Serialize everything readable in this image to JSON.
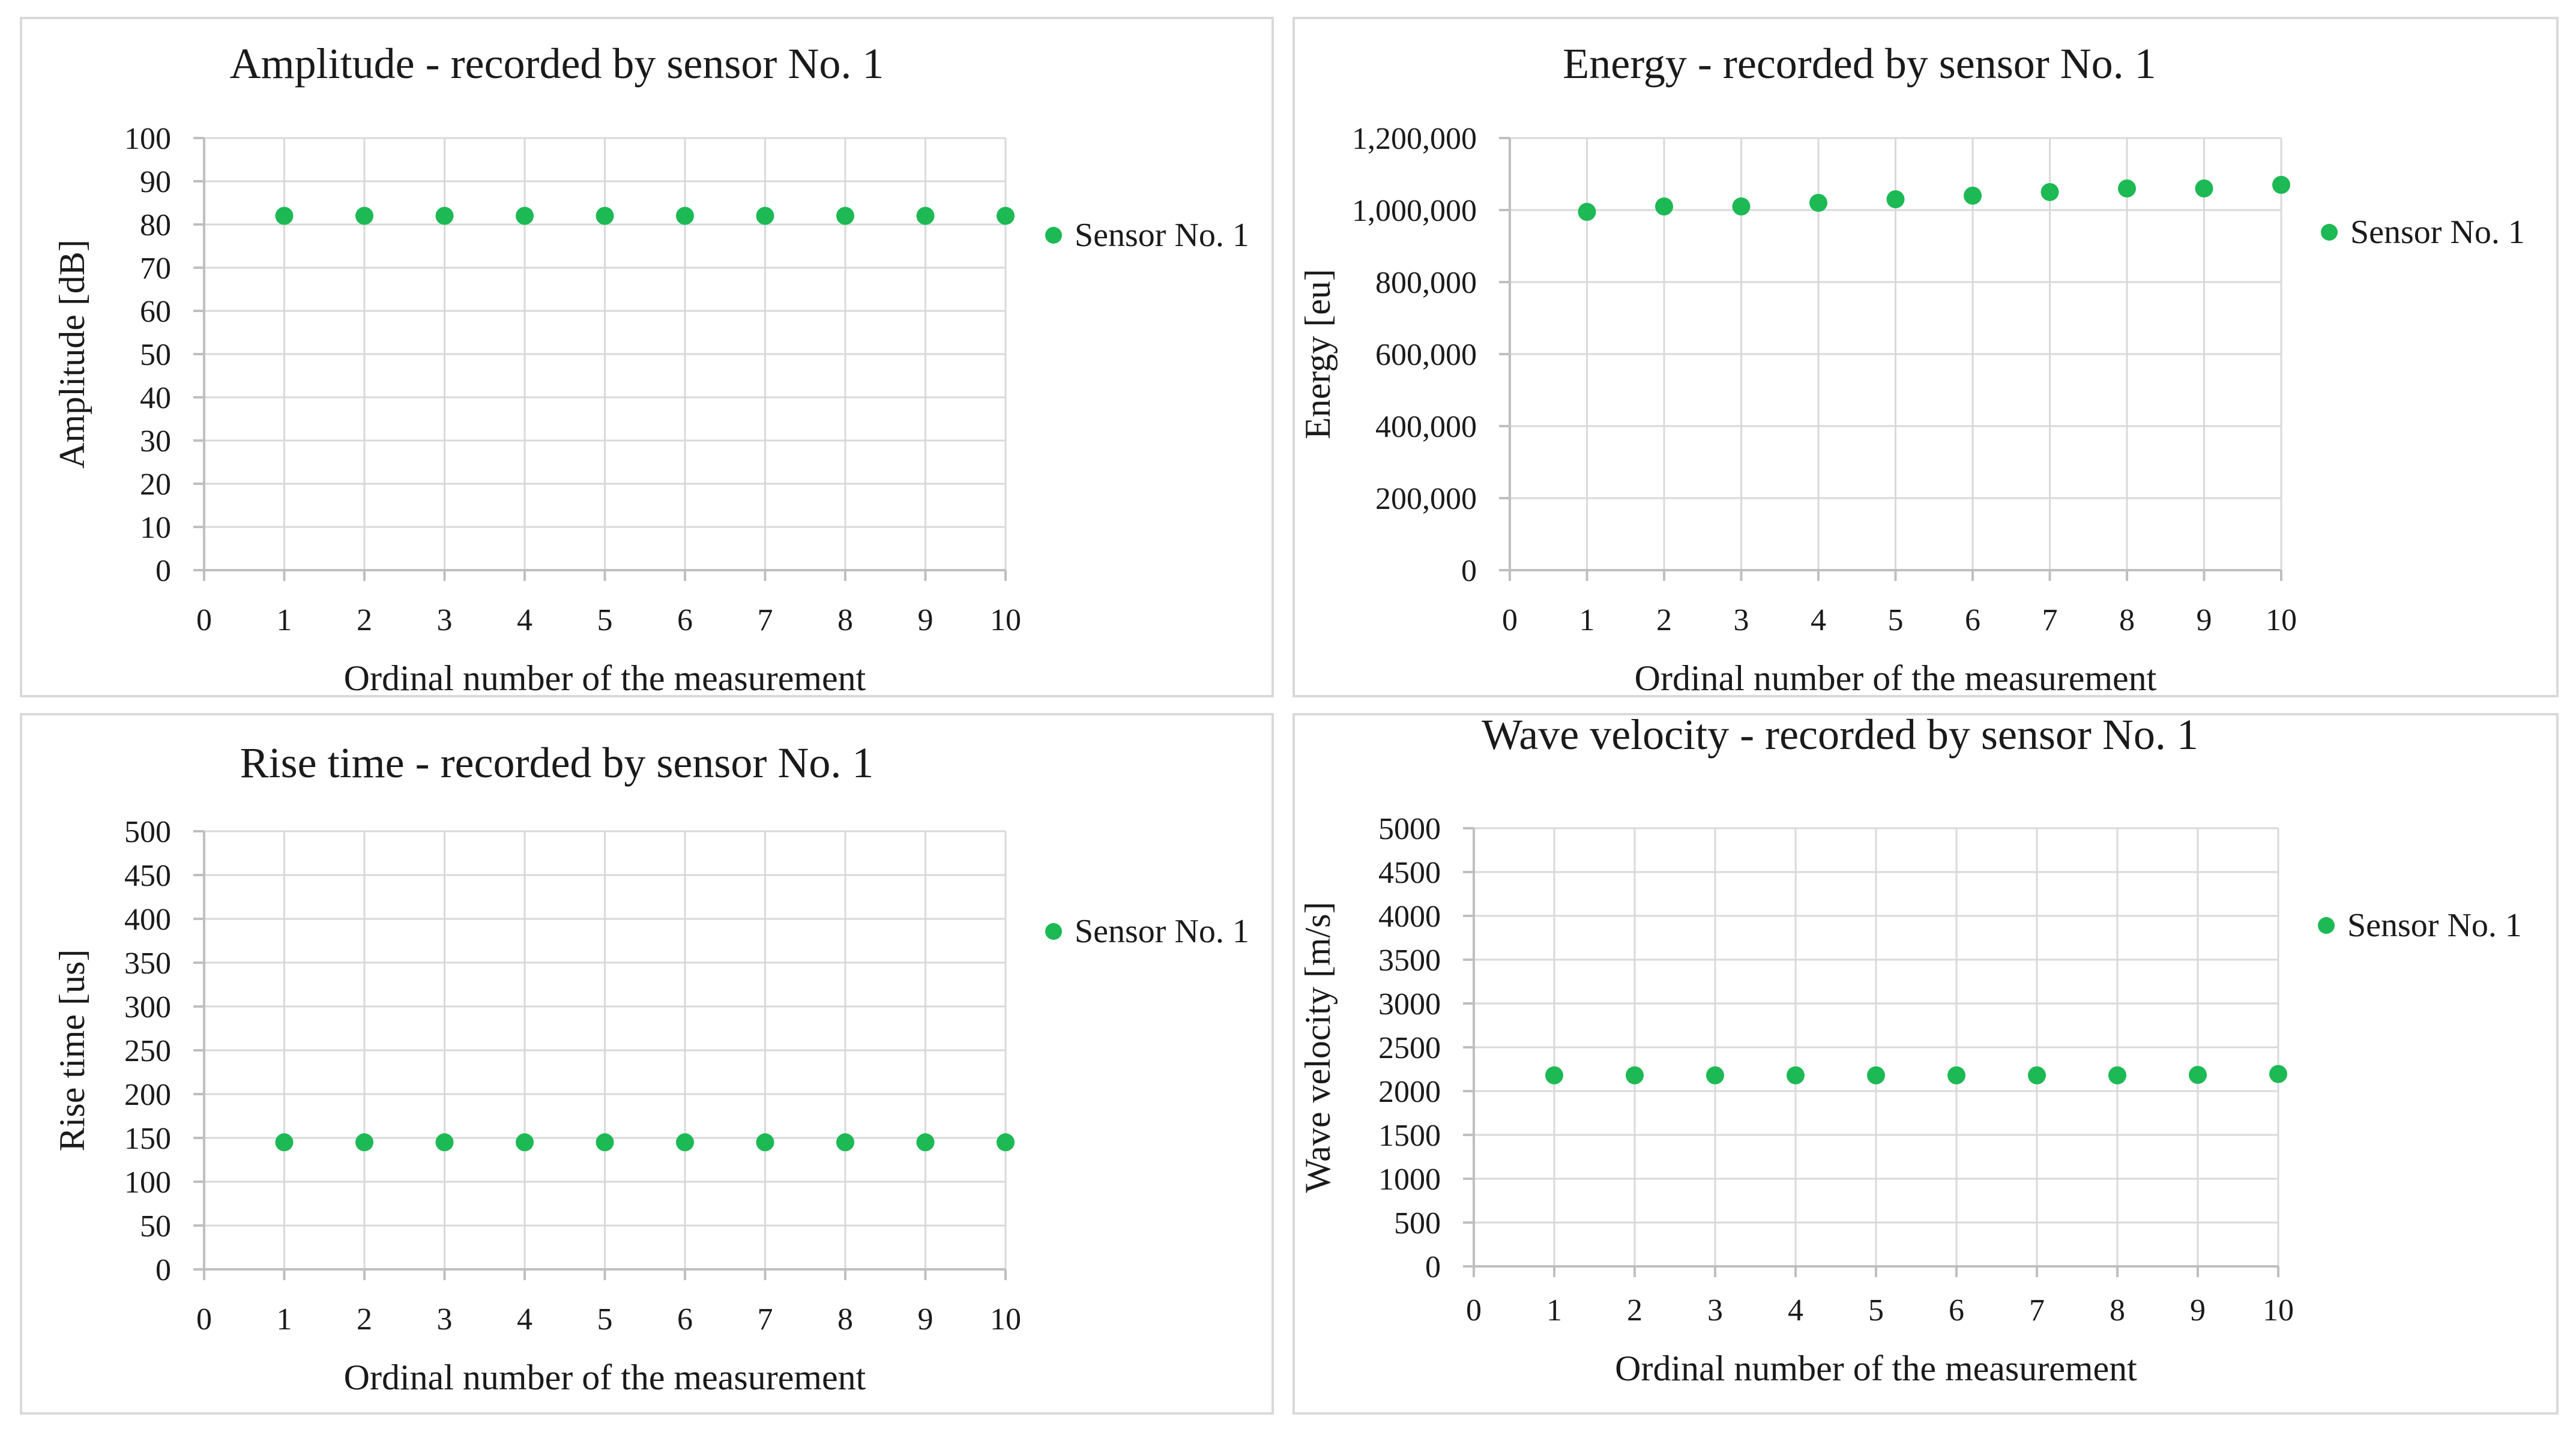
{
  "legend_label": "Sensor No. 1",
  "colors": {
    "marker": "#1db954",
    "grid": "#d9d9d9",
    "border": "#d9d9d9",
    "text": "#1a1a1a"
  },
  "chart_data": [
    {
      "type": "scatter",
      "title": "Amplitude - recorded by sensor No. 1",
      "xlabel": "Ordinal number of the measurement",
      "ylabel": "Amplitude [dB]",
      "xlim": [
        0,
        10
      ],
      "xticks": [
        "0",
        "1",
        "2",
        "3",
        "4",
        "5",
        "6",
        "7",
        "8",
        "9",
        "10"
      ],
      "ylim": [
        0,
        100
      ],
      "yticks": [
        "0",
        "10",
        "20",
        "30",
        "40",
        "50",
        "60",
        "70",
        "80",
        "90",
        "100"
      ],
      "series": [
        {
          "name": "Sensor No. 1",
          "x": [
            1,
            2,
            3,
            4,
            5,
            6,
            7,
            8,
            9,
            10
          ],
          "y": [
            82,
            82,
            82,
            82,
            82,
            82,
            82,
            82,
            82,
            82
          ]
        }
      ]
    },
    {
      "type": "scatter",
      "title": "Energy - recorded by sensor No. 1",
      "xlabel": "Ordinal number of the measurement",
      "ylabel": "Energy [eu]",
      "xlim": [
        0,
        10
      ],
      "xticks": [
        "0",
        "1",
        "2",
        "3",
        "4",
        "5",
        "6",
        "7",
        "8",
        "9",
        "10"
      ],
      "ylim": [
        0,
        1200000
      ],
      "yticks": [
        "0",
        "200,000",
        "400,000",
        "600,000",
        "800,000",
        "1,000,000",
        "1,200,000"
      ],
      "series": [
        {
          "name": "Sensor No. 1",
          "x": [
            1,
            2,
            3,
            4,
            5,
            6,
            7,
            8,
            9,
            10
          ],
          "y": [
            995000,
            1010000,
            1010000,
            1020000,
            1030000,
            1040000,
            1050000,
            1060000,
            1060000,
            1070000
          ]
        }
      ]
    },
    {
      "type": "scatter",
      "title": "Rise time - recorded by sensor No. 1",
      "xlabel": "Ordinal number of the measurement",
      "ylabel": "Rise time [us]",
      "xlim": [
        0,
        10
      ],
      "xticks": [
        "0",
        "1",
        "2",
        "3",
        "4",
        "5",
        "6",
        "7",
        "8",
        "9",
        "10"
      ],
      "ylim": [
        0,
        500
      ],
      "yticks": [
        "0",
        "50",
        "100",
        "150",
        "200",
        "250",
        "300",
        "350",
        "400",
        "450",
        "500"
      ],
      "series": [
        {
          "name": "Sensor No. 1",
          "x": [
            1,
            2,
            3,
            4,
            5,
            6,
            7,
            8,
            9,
            10
          ],
          "y": [
            145,
            145,
            145,
            145,
            145,
            145,
            145,
            145,
            145,
            145
          ]
        }
      ]
    },
    {
      "type": "scatter",
      "title": "Wave velocity - recorded by sensor No. 1",
      "xlabel": "Ordinal number of the measurement",
      "ylabel": "Wave velocity [m/s]",
      "xlim": [
        0,
        10
      ],
      "xticks": [
        "0",
        "1",
        "2",
        "3",
        "4",
        "5",
        "6",
        "7",
        "8",
        "9",
        "10"
      ],
      "ylim": [
        0,
        5000
      ],
      "yticks": [
        "0",
        "500",
        "1000",
        "1500",
        "2000",
        "2500",
        "3000",
        "3500",
        "4000",
        "4500",
        "5000"
      ],
      "series": [
        {
          "name": "Sensor No. 1",
          "x": [
            1,
            2,
            3,
            4,
            5,
            6,
            7,
            8,
            9,
            10
          ],
          "y": [
            2180,
            2180,
            2180,
            2180,
            2180,
            2180,
            2180,
            2180,
            2185,
            2195
          ]
        }
      ]
    }
  ]
}
